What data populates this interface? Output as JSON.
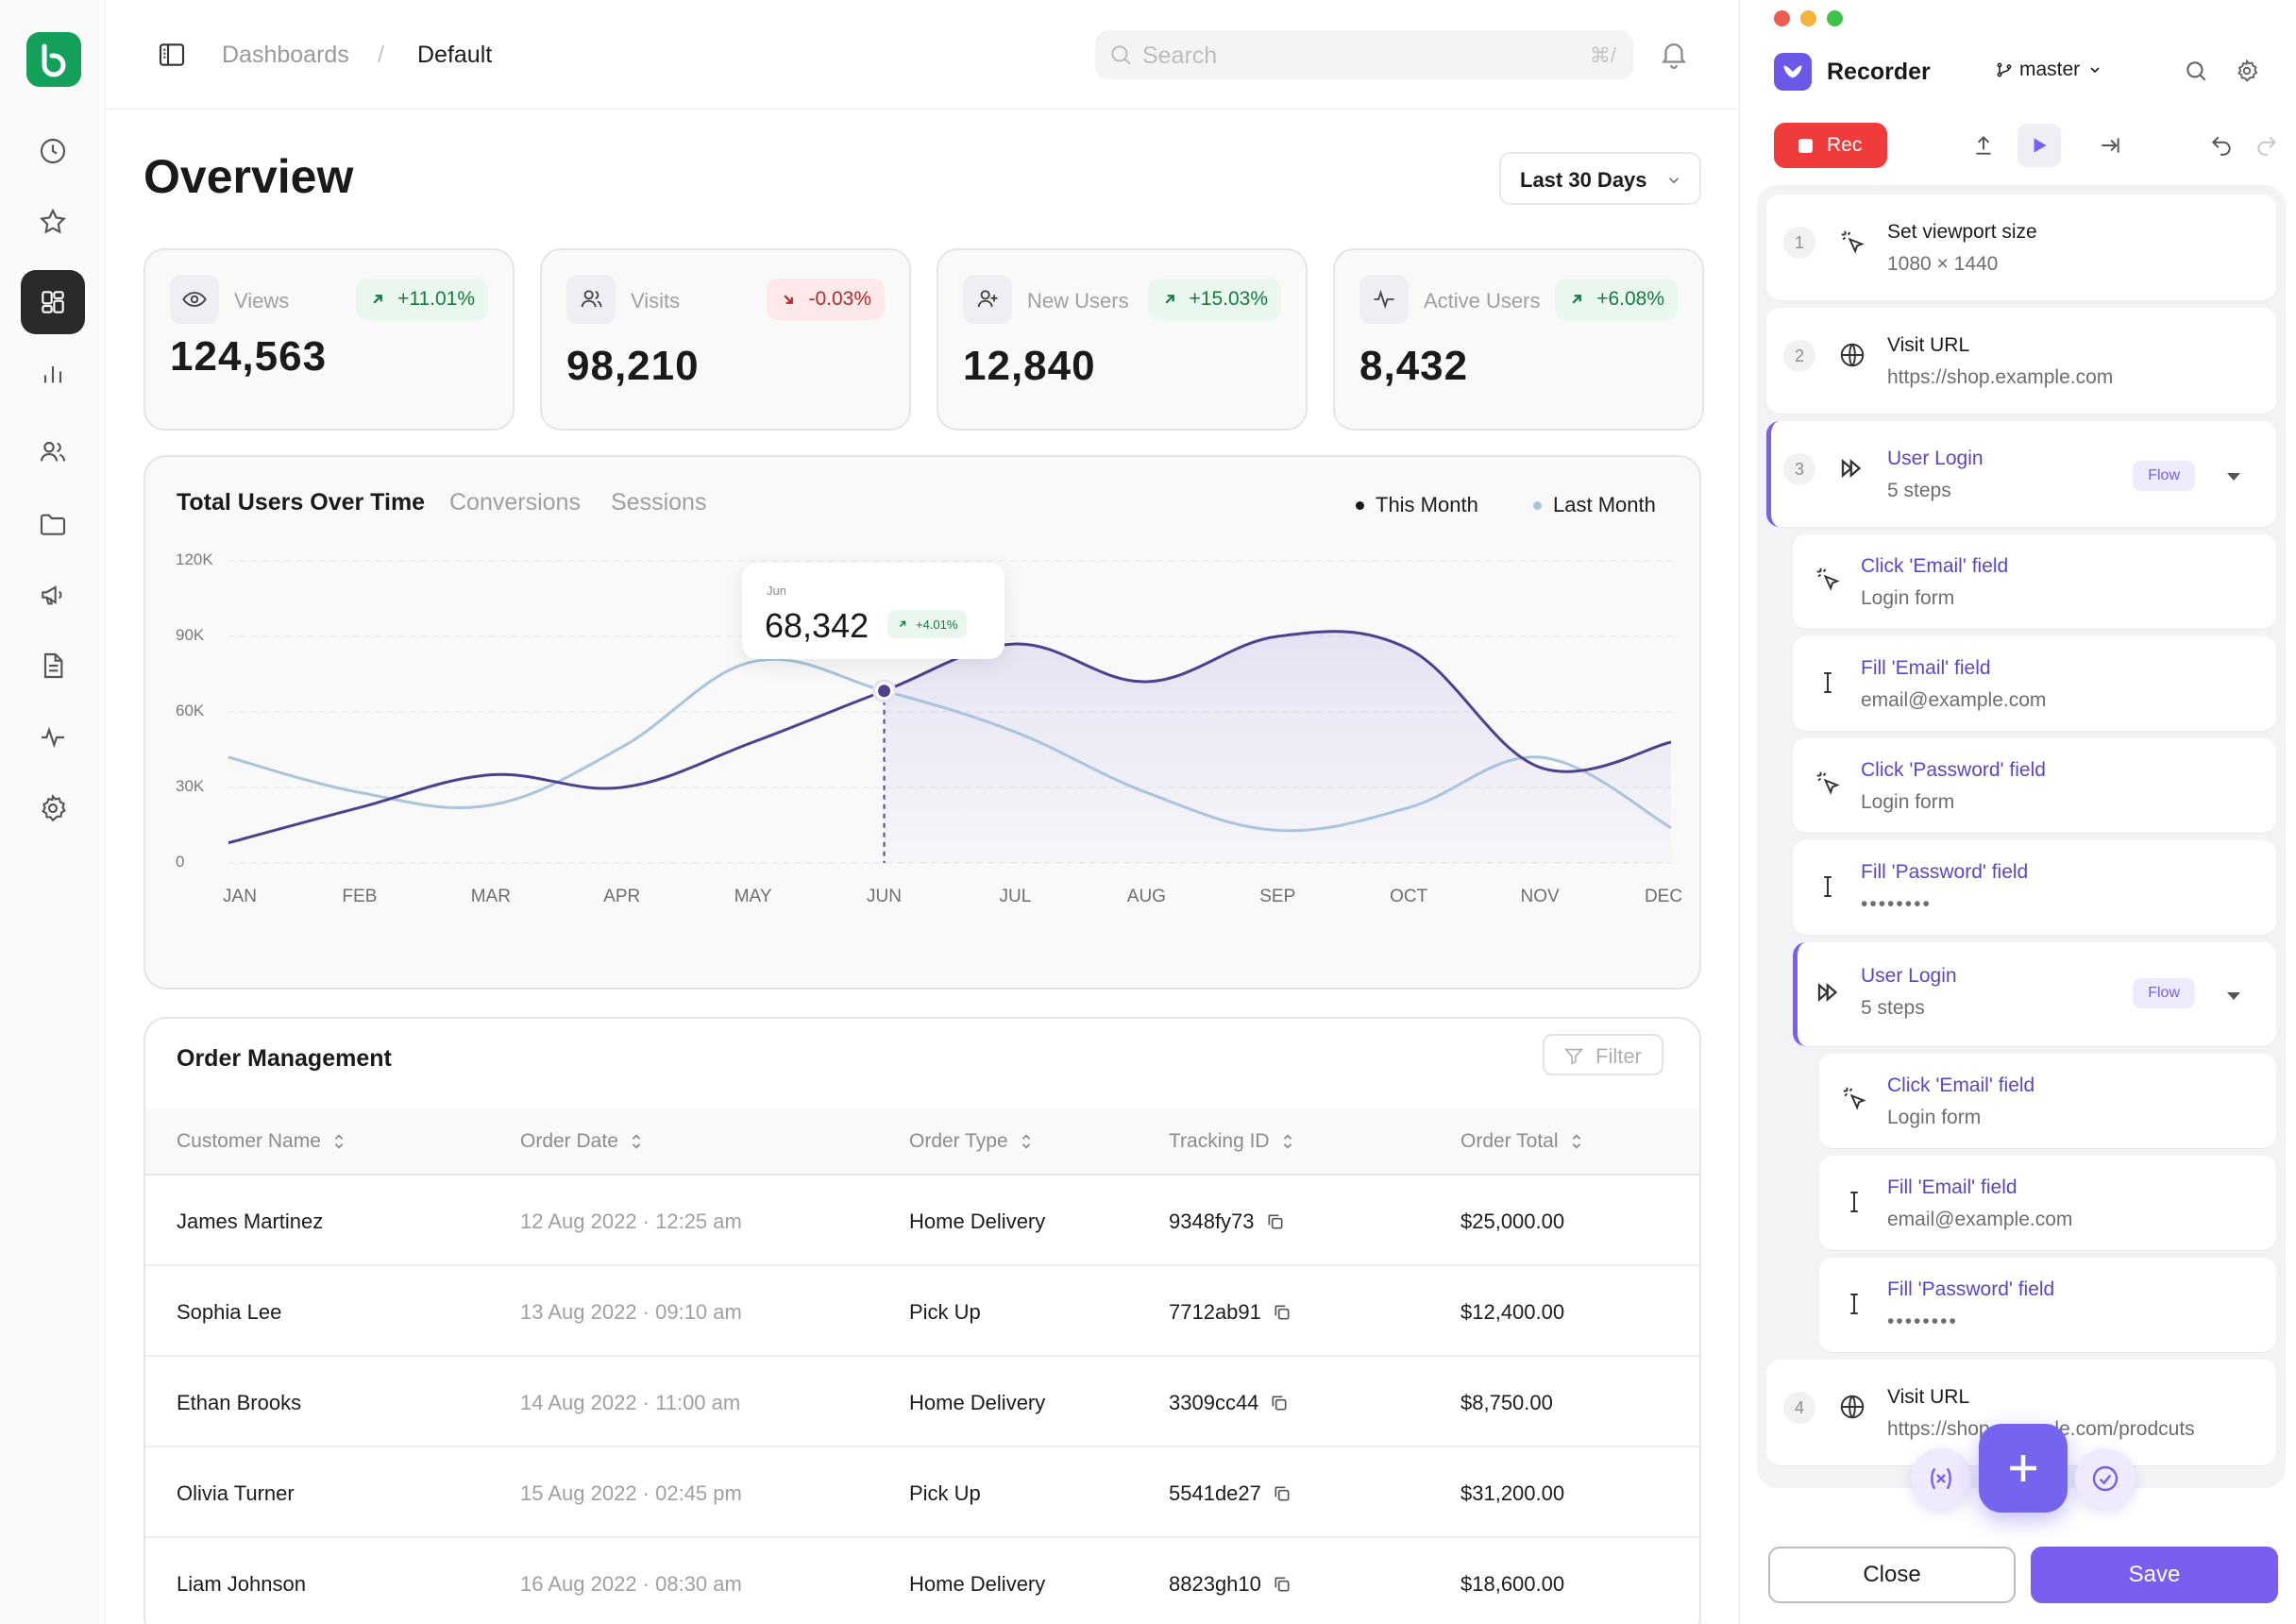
{
  "sidebar": {
    "items": [
      {
        "icon": "clock-icon"
      },
      {
        "icon": "star-icon"
      },
      {
        "icon": "dashboard-icon",
        "active": true
      },
      {
        "icon": "bar-chart-icon"
      },
      {
        "icon": "users-icon"
      },
      {
        "icon": "folder-icon"
      },
      {
        "icon": "megaphone-icon"
      },
      {
        "icon": "document-icon"
      },
      {
        "icon": "activity-icon"
      },
      {
        "icon": "gear-icon"
      }
    ]
  },
  "header": {
    "breadcrumb_parent": "Dashboards",
    "breadcrumb_sep": "/",
    "breadcrumb_current": "Default",
    "search_placeholder": "Search",
    "search_shortcut": "⌘/"
  },
  "overview": {
    "title": "Overview",
    "range_label": "Last 30 Days"
  },
  "stats": [
    {
      "label": "Views",
      "value": "124,563",
      "change": "+11.01%",
      "trend": "up",
      "icon": "eye-icon"
    },
    {
      "label": "Visits",
      "value": "98,210",
      "change": "-0.03%",
      "trend": "down",
      "icon": "users-icon"
    },
    {
      "label": "New Users",
      "value": "12,840",
      "change": "+15.03%",
      "trend": "up",
      "icon": "user-plus-icon"
    },
    {
      "label": "Active Users",
      "value": "8,432",
      "change": "+6.08%",
      "trend": "up",
      "icon": "activity-icon"
    }
  ],
  "chart": {
    "tabs": [
      "Total Users Over Time",
      "Conversions",
      "Sessions"
    ],
    "legend": [
      "This Month",
      "Last Month"
    ],
    "tooltip": {
      "month": "Jun",
      "value": "68,342",
      "change": "+4.01%"
    }
  },
  "chart_data": {
    "type": "line",
    "x": [
      "JAN",
      "FEB",
      "MAR",
      "APR",
      "MAY",
      "JUN",
      "JUL",
      "AUG",
      "SEP",
      "OCT",
      "NOV",
      "DEC"
    ],
    "y_ticks": [
      "120K",
      "90K",
      "60K",
      "30K",
      "0"
    ],
    "ylim": [
      0,
      120000
    ],
    "series": [
      {
        "name": "This Month",
        "color": "#4f3f8f",
        "values": [
          8000,
          22000,
          35000,
          30000,
          48000,
          68342,
          87000,
          72000,
          90000,
          85000,
          38000,
          48000
        ]
      },
      {
        "name": "Last Month",
        "color": "#a9c4dc",
        "values": [
          42000,
          28000,
          23000,
          46000,
          80000,
          68342,
          52000,
          28000,
          13000,
          22000,
          42000,
          14000
        ]
      }
    ],
    "highlight_index": 5,
    "grid": true,
    "legend_position": "top-right"
  },
  "orders": {
    "title": "Order Management",
    "filter_label": "Filter",
    "columns": [
      "Customer Name",
      "Order Date",
      "Order Type",
      "Tracking ID",
      "Order Total"
    ],
    "rows": [
      {
        "name": "James Martinez",
        "date": "12 Aug 2022 · 12:25 am",
        "type": "Home Delivery",
        "tracking": "9348fy73",
        "total": "$25,000.00"
      },
      {
        "name": "Sophia Lee",
        "date": "13 Aug 2022 · 09:10 am",
        "type": "Pick Up",
        "tracking": "7712ab91",
        "total": "$12,400.00"
      },
      {
        "name": "Ethan Brooks",
        "date": "14 Aug 2022 · 11:00 am",
        "type": "Home Delivery",
        "tracking": "3309cc44",
        "total": "$8,750.00"
      },
      {
        "name": "Olivia Turner",
        "date": "15 Aug 2022 · 02:45 pm",
        "type": "Pick Up",
        "tracking": "5541de27",
        "total": "$31,200.00"
      },
      {
        "name": "Liam Johnson",
        "date": "16 Aug 2022 · 08:30 am",
        "type": "Home Delivery",
        "tracking": "8823gh10",
        "total": "$18,600.00"
      }
    ]
  },
  "recorder": {
    "title": "Recorder",
    "branch": "master",
    "rec_label": "Rec",
    "steps": [
      {
        "num": "1",
        "title": "Set viewport size",
        "detail": "1080 × 1440",
        "icon": "cursor-click-icon"
      },
      {
        "num": "2",
        "title": "Visit URL",
        "detail": "https://shop.example.com",
        "icon": "globe-icon"
      },
      {
        "num": "3",
        "title": "User Login",
        "detail": "5 steps",
        "tag": "Flow",
        "icon": "flow-icon"
      },
      {
        "title": "Click 'Email' field",
        "detail": "Login form",
        "icon": "cursor-click-icon"
      },
      {
        "title": "Fill 'Email' field",
        "detail": "email@example.com",
        "icon": "text-cursor-icon"
      },
      {
        "title": "Click 'Password' field",
        "detail": "Login form",
        "icon": "cursor-click-icon"
      },
      {
        "title": "Fill 'Password' field",
        "detail": "••••••••",
        "icon": "text-cursor-icon"
      },
      {
        "title": "User Login",
        "detail": "5 steps",
        "tag": "Flow",
        "icon": "flow-icon"
      },
      {
        "title": "Click 'Email' field",
        "detail": "Login form",
        "icon": "cursor-click-icon"
      },
      {
        "title": "Fill 'Email' field",
        "detail": "email@example.com",
        "icon": "text-cursor-icon"
      },
      {
        "title": "Fill 'Password' field",
        "detail": "••••••••",
        "icon": "text-cursor-icon"
      },
      {
        "num": "4",
        "title": "Visit URL",
        "detail": "https://shop.example.com/prodcuts",
        "icon": "globe-icon"
      }
    ],
    "close_label": "Close",
    "save_label": "Save"
  }
}
